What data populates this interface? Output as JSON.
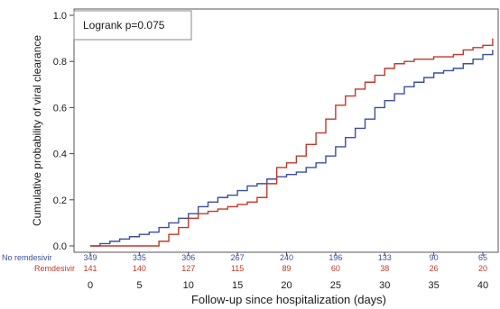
{
  "chart_data": {
    "type": "line",
    "chart_kind": "kaplan-meier cumulative incidence (step)",
    "xlabel": "Follow-up since hospitalization (days)",
    "ylabel": "Cumulative probability of viral clearance",
    "xlim": [
      0,
      41
    ],
    "ylim": [
      0,
      1.0
    ],
    "x_ticks": [
      0,
      5,
      10,
      15,
      20,
      25,
      30,
      35,
      40
    ],
    "y_ticks": [
      "0.0",
      "0.2",
      "0.4",
      "0.6",
      "0.8",
      "1.0"
    ],
    "annotation": "Logrank p=0.075",
    "series": [
      {
        "name": "No remdesivir",
        "color": "#3b4fa0",
        "x": [
          0,
          1,
          2,
          3,
          4,
          5,
          6,
          7,
          8,
          9,
          10,
          11,
          12,
          13,
          14,
          15,
          16,
          17,
          18,
          19,
          20,
          21,
          22,
          23,
          24,
          25,
          26,
          27,
          28,
          29,
          30,
          31,
          32,
          33,
          34,
          35,
          36,
          37,
          38,
          39,
          40,
          41
        ],
        "y": [
          0.0,
          0.01,
          0.02,
          0.03,
          0.04,
          0.05,
          0.06,
          0.08,
          0.1,
          0.12,
          0.14,
          0.17,
          0.19,
          0.21,
          0.22,
          0.24,
          0.26,
          0.27,
          0.29,
          0.3,
          0.31,
          0.32,
          0.34,
          0.36,
          0.39,
          0.43,
          0.47,
          0.51,
          0.55,
          0.6,
          0.63,
          0.66,
          0.69,
          0.71,
          0.73,
          0.75,
          0.76,
          0.77,
          0.79,
          0.81,
          0.83,
          0.85
        ]
      },
      {
        "name": "Remdesivir",
        "color": "#c0392b",
        "x": [
          0,
          1,
          2,
          3,
          4,
          5,
          6,
          7,
          8,
          9,
          10,
          11,
          12,
          13,
          14,
          15,
          16,
          17,
          18,
          19,
          20,
          21,
          22,
          23,
          24,
          25,
          26,
          27,
          28,
          29,
          30,
          31,
          32,
          33,
          34,
          35,
          36,
          37,
          38,
          39,
          40,
          41
        ],
        "y": [
          0.0,
          0.0,
          0.0,
          0.0,
          0.0,
          0.0,
          0.0,
          0.02,
          0.05,
          0.08,
          0.12,
          0.14,
          0.15,
          0.16,
          0.17,
          0.18,
          0.19,
          0.21,
          0.27,
          0.34,
          0.36,
          0.39,
          0.44,
          0.49,
          0.55,
          0.61,
          0.65,
          0.68,
          0.71,
          0.74,
          0.77,
          0.79,
          0.8,
          0.81,
          0.81,
          0.82,
          0.82,
          0.83,
          0.85,
          0.86,
          0.87,
          0.9
        ]
      }
    ],
    "risk_table": {
      "times": [
        0,
        5,
        10,
        15,
        20,
        25,
        30,
        35,
        40
      ],
      "rows": [
        {
          "label": "No remdesivir",
          "color": "#3b4fa0",
          "values": [
            "349",
            "335",
            "306",
            "267",
            "240",
            "196",
            "133",
            "90",
            "65"
          ]
        },
        {
          "label": "Remdesivir",
          "color": "#c0392b",
          "values": [
            "141",
            "140",
            "127",
            "115",
            "89",
            "60",
            "38",
            "26",
            "20"
          ]
        }
      ]
    }
  }
}
